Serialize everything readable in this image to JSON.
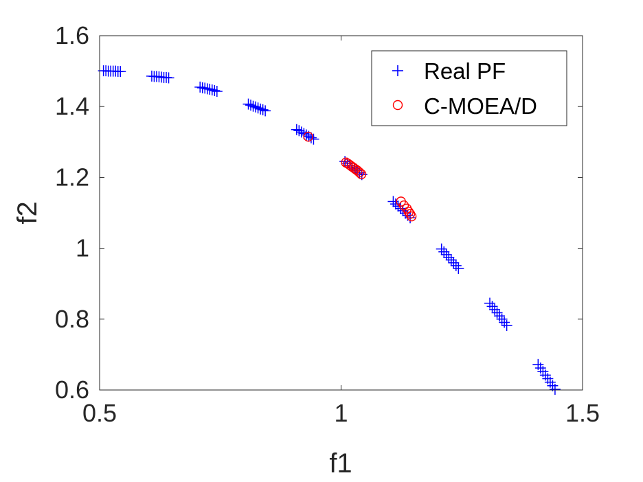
{
  "chart_data": {
    "type": "scatter",
    "title": "",
    "xlabel": "f1",
    "ylabel": "f2",
    "xlim": [
      0.5,
      1.5
    ],
    "ylim": [
      0.6,
      1.6
    ],
    "xticks": [
      0.5,
      1,
      1.5
    ],
    "xtick_labels": [
      "0.5",
      "1",
      "1.5"
    ],
    "yticks": [
      0.6,
      0.8,
      1.0,
      1.2,
      1.4,
      1.6
    ],
    "ytick_labels": [
      "0.6",
      "0.8",
      "1",
      "1.2",
      "1.4",
      "1.6"
    ],
    "grid": false,
    "legend_position": "top-right",
    "series": [
      {
        "name": "Real PF",
        "marker": "plus",
        "color": "#0000ff",
        "x": [
          0.508,
          0.513,
          0.518,
          0.523,
          0.528,
          0.533,
          0.538,
          0.543,
          0.608,
          0.613,
          0.618,
          0.623,
          0.628,
          0.633,
          0.638,
          0.643,
          0.708,
          0.713,
          0.718,
          0.723,
          0.728,
          0.733,
          0.738,
          0.743,
          0.808,
          0.813,
          0.818,
          0.823,
          0.828,
          0.833,
          0.838,
          0.843,
          0.908,
          0.913,
          0.918,
          0.923,
          0.928,
          0.933,
          0.938,
          0.943,
          1.008,
          1.013,
          1.018,
          1.023,
          1.028,
          1.033,
          1.038,
          1.043,
          1.108,
          1.113,
          1.118,
          1.123,
          1.128,
          1.133,
          1.138,
          1.143,
          1.208,
          1.213,
          1.218,
          1.223,
          1.228,
          1.233,
          1.238,
          1.243,
          1.308,
          1.313,
          1.318,
          1.323,
          1.328,
          1.333,
          1.338,
          1.343,
          1.408,
          1.413,
          1.418,
          1.423,
          1.428,
          1.433,
          1.438,
          1.443
        ],
        "y": [
          1.501,
          1.501,
          1.5,
          1.5,
          1.5,
          1.5,
          1.499,
          1.499,
          1.486,
          1.485,
          1.485,
          1.484,
          1.483,
          1.482,
          1.482,
          1.481,
          1.455,
          1.453,
          1.452,
          1.45,
          1.449,
          1.447,
          1.445,
          1.443,
          1.407,
          1.404,
          1.401,
          1.399,
          1.396,
          1.393,
          1.391,
          1.388,
          1.335,
          1.332,
          1.328,
          1.324,
          1.32,
          1.316,
          1.312,
          1.308,
          1.245,
          1.24,
          1.234,
          1.229,
          1.224,
          1.219,
          1.213,
          1.208,
          1.132,
          1.125,
          1.119,
          1.112,
          1.106,
          1.099,
          1.093,
          1.086,
          0.998,
          0.99,
          0.982,
          0.974,
          0.967,
          0.959,
          0.951,
          0.943,
          0.845,
          0.836,
          0.827,
          0.818,
          0.809,
          0.8,
          0.791,
          0.782,
          0.672,
          0.662,
          0.652,
          0.642,
          0.632,
          0.622,
          0.612,
          0.602
        ]
      },
      {
        "name": "C-MOEA/D",
        "marker": "circle",
        "color": "#ff0000",
        "x": [
          0.932,
          1.01,
          1.014,
          1.018,
          1.022,
          1.026,
          1.03,
          1.034,
          1.038,
          1.042,
          1.124,
          1.13,
          1.136,
          1.14,
          1.143,
          1.146
        ],
        "y": [
          1.315,
          1.242,
          1.239,
          1.235,
          1.231,
          1.227,
          1.223,
          1.219,
          1.214,
          1.209,
          1.132,
          1.121,
          1.112,
          1.103,
          1.097,
          1.09
        ]
      }
    ]
  }
}
